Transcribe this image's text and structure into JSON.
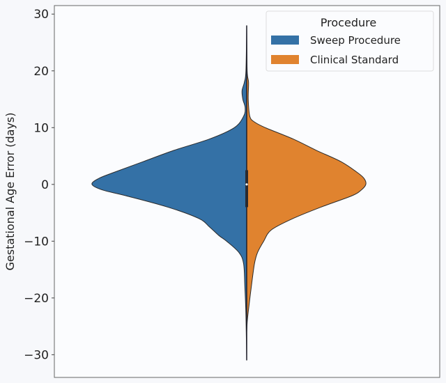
{
  "chart_data": {
    "type": "violin",
    "split": true,
    "title": "",
    "xlabel": "",
    "ylabel": "Gestational Age Error (days)",
    "ylim": [
      -34,
      31.5
    ],
    "yticks": [
      30,
      20,
      10,
      0,
      -10,
      -20,
      -30
    ],
    "ytick_labels": [
      "30",
      "20",
      "10",
      "0",
      "−10",
      "−20",
      "−30"
    ],
    "grid": false,
    "legend": {
      "title": "Procedure",
      "placement": "top-right"
    },
    "series": [
      {
        "name": "Sweep Procedure",
        "side": "left",
        "color": "#3471a6",
        "density": [
          [
            28,
            0
          ],
          [
            20,
            0.005
          ],
          [
            18,
            0.015
          ],
          [
            16.5,
            0.03
          ],
          [
            15,
            0.025
          ],
          [
            13.5,
            0.01
          ],
          [
            12,
            0.02
          ],
          [
            10,
            0.08
          ],
          [
            8,
            0.24
          ],
          [
            6,
            0.47
          ],
          [
            4,
            0.67
          ],
          [
            2,
            0.87
          ],
          [
            1,
            0.96
          ],
          [
            0,
            1.0
          ],
          [
            -1,
            0.93
          ],
          [
            -2,
            0.78
          ],
          [
            -4,
            0.51
          ],
          [
            -6,
            0.31
          ],
          [
            -7.5,
            0.24
          ],
          [
            -9,
            0.18
          ],
          [
            -10,
            0.13
          ],
          [
            -12,
            0.05
          ],
          [
            -14,
            0.02
          ],
          [
            -18,
            0.012
          ],
          [
            -22,
            0.006
          ],
          [
            -26,
            0.003
          ],
          [
            -31,
            0
          ]
        ]
      },
      {
        "name": "Clinical Standard",
        "side": "right",
        "color": "#e0832f",
        "density": [
          [
            28,
            0
          ],
          [
            20,
            0.003
          ],
          [
            18,
            0.012
          ],
          [
            15,
            0.01
          ],
          [
            12,
            0.02
          ],
          [
            11,
            0.05
          ],
          [
            10,
            0.12
          ],
          [
            8,
            0.3
          ],
          [
            6,
            0.45
          ],
          [
            4,
            0.61
          ],
          [
            2,
            0.72
          ],
          [
            1,
            0.76
          ],
          [
            0,
            0.77
          ],
          [
            -1,
            0.74
          ],
          [
            -2,
            0.68
          ],
          [
            -4,
            0.48
          ],
          [
            -6,
            0.3
          ],
          [
            -8,
            0.16
          ],
          [
            -10,
            0.11
          ],
          [
            -12,
            0.07
          ],
          [
            -14,
            0.05
          ],
          [
            -18,
            0.03
          ],
          [
            -22,
            0.012
          ],
          [
            -24,
            0.004
          ],
          [
            -26,
            0
          ]
        ]
      }
    ],
    "inner_box": {
      "q1": -4,
      "q3": 2.5,
      "median": 0,
      "whisker_low": -31,
      "whisker_high": 28
    }
  }
}
